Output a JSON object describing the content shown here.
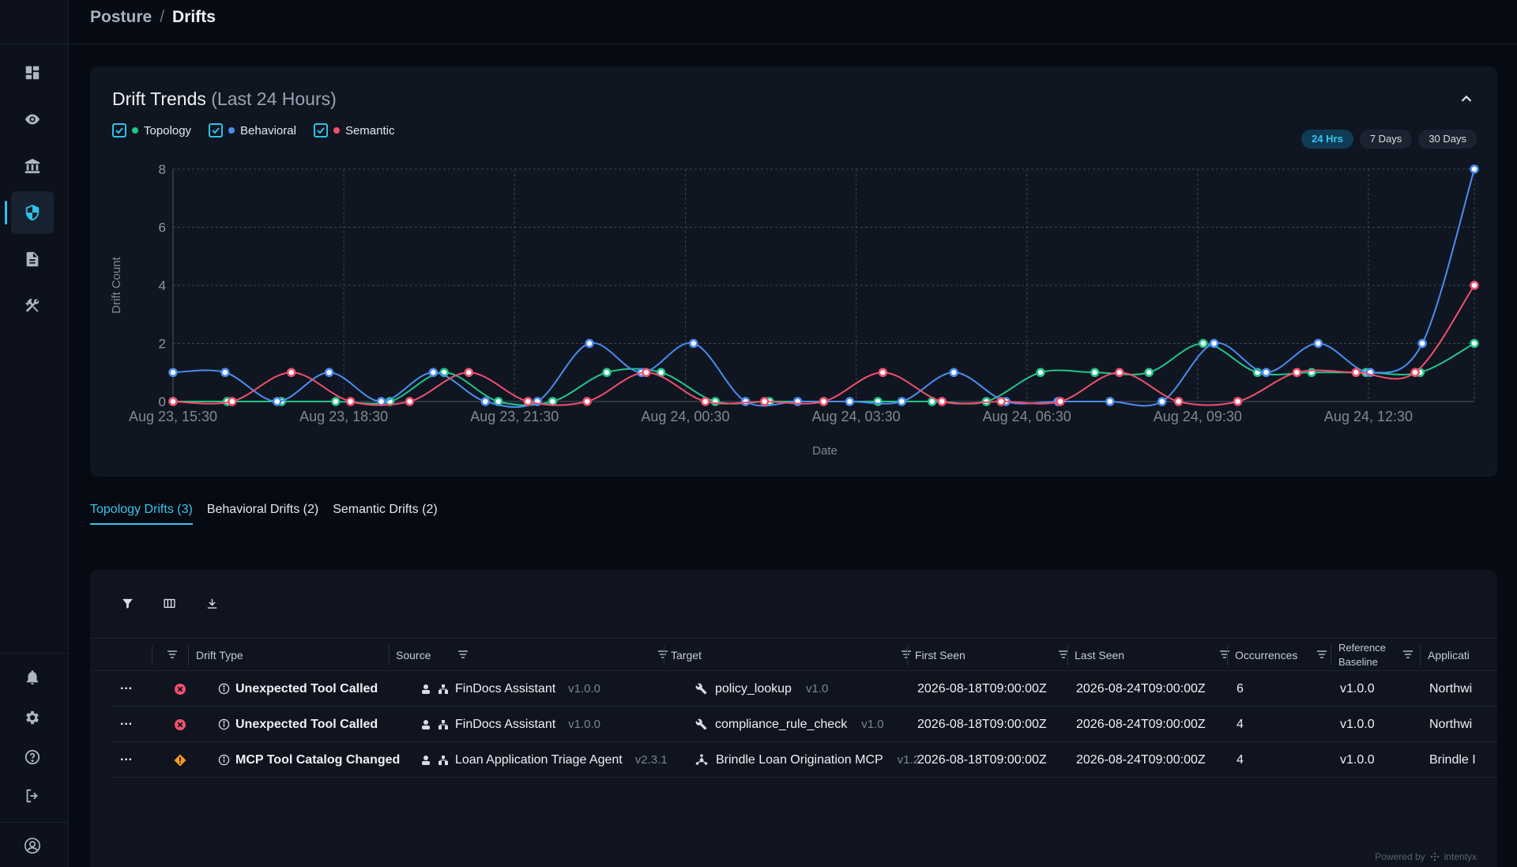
{
  "breadcrumb": {
    "parent": "Posture",
    "separator": "/",
    "current": "Drifts"
  },
  "chart_card": {
    "title": "Drift Trends",
    "subtitle": "(Last 24 Hours)",
    "legend": [
      {
        "label": "Topology",
        "color": "#22c487"
      },
      {
        "label": "Behavioral",
        "color": "#4b8cf0"
      },
      {
        "label": "Semantic",
        "color": "#f0506e"
      }
    ],
    "ranges": [
      {
        "label": "24 Hrs",
        "active": true
      },
      {
        "label": "7 Days",
        "active": false
      },
      {
        "label": "30 Days",
        "active": false
      }
    ]
  },
  "chart_data": {
    "type": "line",
    "xlabel": "Date",
    "ylabel": "Drift Count",
    "ylim": [
      0,
      8
    ],
    "yticks": [
      0,
      2,
      4,
      6,
      8
    ],
    "x_tick_labels": [
      "Aug 23, 15:30",
      "Aug 23, 18:30",
      "Aug 23, 21:30",
      "Aug 24, 00:30",
      "Aug 24, 03:30",
      "Aug 24, 06:30",
      "Aug 24, 09:30",
      "Aug 24, 12:30"
    ],
    "grid": true,
    "series": [
      {
        "name": "Topology",
        "color": "#22c487",
        "values": [
          0,
          0,
          0,
          0,
          0,
          1,
          0,
          0,
          1,
          1,
          0,
          0,
          0,
          0,
          0,
          0,
          1,
          1,
          1,
          2,
          1,
          1,
          1,
          1,
          2
        ]
      },
      {
        "name": "Behavioral",
        "color": "#4b8cf0",
        "values": [
          1,
          1,
          0,
          1,
          0,
          1,
          0,
          0,
          2,
          1,
          2,
          0,
          0,
          0,
          0,
          1,
          0,
          0,
          0,
          0,
          2,
          1,
          2,
          1,
          2,
          8
        ]
      },
      {
        "name": "Semantic",
        "color": "#f0506e",
        "values": [
          0,
          0,
          1,
          0,
          0,
          1,
          0,
          0,
          1,
          0,
          0,
          0,
          1,
          0,
          0,
          0,
          1,
          0,
          0,
          1,
          1,
          1,
          4
        ]
      }
    ]
  },
  "tabs": [
    {
      "label": "Topology Drifts (3)",
      "active": true
    },
    {
      "label": "Behavioral Drifts (2)",
      "active": false
    },
    {
      "label": "Semantic Drifts (2)",
      "active": false
    }
  ],
  "table": {
    "columns": {
      "drift_type": "Drift Type",
      "source": "Source",
      "target": "Target",
      "first_seen": "First Seen",
      "last_seen": "Last Seen",
      "occurrences": "Occurrences",
      "reference_1": "Reference",
      "reference_2": "Baseline",
      "application": "Applicati"
    },
    "rows": [
      {
        "menu": "···",
        "severity": "error",
        "drift_type": "Unexpected Tool Called",
        "source": "FinDocs Assistant",
        "source_version": "v1.0.0",
        "target_icon": "wrench-icon",
        "target": "policy_lookup",
        "target_version": "v1.0",
        "first_seen": "2026-08-18T09:00:00Z",
        "last_seen": "2026-08-24T09:00:00Z",
        "occurrences": "6",
        "baseline": "v1.0.0",
        "application": "Northwi"
      },
      {
        "menu": "···",
        "severity": "error",
        "drift_type": "Unexpected Tool Called",
        "source": "FinDocs Assistant",
        "source_version": "v1.0.0",
        "target_icon": "wrench-icon",
        "target": "compliance_rule_check",
        "target_version": "v1.0",
        "first_seen": "2026-08-18T09:00:00Z",
        "last_seen": "2026-08-24T09:00:00Z",
        "occurrences": "4",
        "baseline": "v1.0.0",
        "application": "Northwi"
      },
      {
        "menu": "···",
        "severity": "warning",
        "drift_type": "MCP Tool Catalog Changed",
        "source": "Loan Application Triage Agent",
        "source_version": "v2.3.1",
        "target_icon": "hub-icon",
        "target": "Brindle Loan Origination MCP",
        "target_version": "v1.2",
        "first_seen": "2026-08-18T09:00:00Z",
        "last_seen": "2026-08-24T09:00:00Z",
        "occurrences": "4",
        "baseline": "v1.0.0",
        "application": "Brindle I"
      }
    ]
  },
  "footer": {
    "powered_by": "Powered by",
    "brand": "intentyx"
  }
}
